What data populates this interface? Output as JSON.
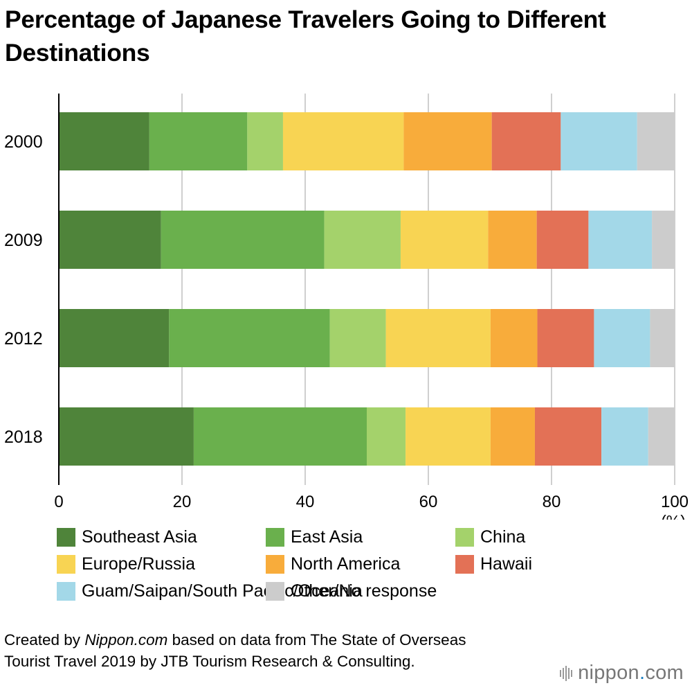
{
  "title": "Percentage of Japanese Travelers Going to Different Destinations",
  "chart_data": {
    "type": "bar",
    "orientation": "horizontal",
    "stacked": true,
    "categories": [
      "2000",
      "2009",
      "2012",
      "2018"
    ],
    "series": [
      {
        "name": "Southeast Asia",
        "color": "#4f843a",
        "values": [
          14.7,
          16.6,
          17.9,
          21.9
        ]
      },
      {
        "name": "East Asia",
        "color": "#6ab04d",
        "values": [
          15.9,
          26.5,
          26.1,
          28.1
        ]
      },
      {
        "name": "China",
        "color": "#a4d26b",
        "values": [
          5.8,
          12.4,
          9.1,
          6.3
        ]
      },
      {
        "name": "Europe/Russia",
        "color": "#f8d453",
        "values": [
          19.6,
          14.2,
          17.0,
          13.8
        ]
      },
      {
        "name": "North America",
        "color": "#f8ac3b",
        "values": [
          14.3,
          7.9,
          7.6,
          7.2
        ]
      },
      {
        "name": "Hawaii",
        "color": "#e37156",
        "values": [
          11.2,
          8.4,
          9.2,
          10.8
        ]
      },
      {
        "name": "Guam/Saipan/South Pacific/Oceania",
        "color": "#a3d8e8",
        "values": [
          12.4,
          10.3,
          9.1,
          7.6
        ]
      },
      {
        "name": "Other/No response",
        "color": "#cccccc",
        "values": [
          6.1,
          3.7,
          4.0,
          4.3
        ]
      }
    ],
    "x_ticks": [
      "0",
      "20",
      "40",
      "60",
      "80",
      "100"
    ],
    "x_unit": "(%)",
    "xlim": [
      0,
      100
    ],
    "grid": true,
    "legend_position": "bottom"
  },
  "source": {
    "prefix": "Created by ",
    "site": "Nippon.com",
    "suffix": " based on data from The State of Overseas Tourist Travel 2019 by JTB Tourism Research & Consulting."
  },
  "brand": {
    "name": "nippon",
    "dot": ".",
    "tld": "com"
  }
}
